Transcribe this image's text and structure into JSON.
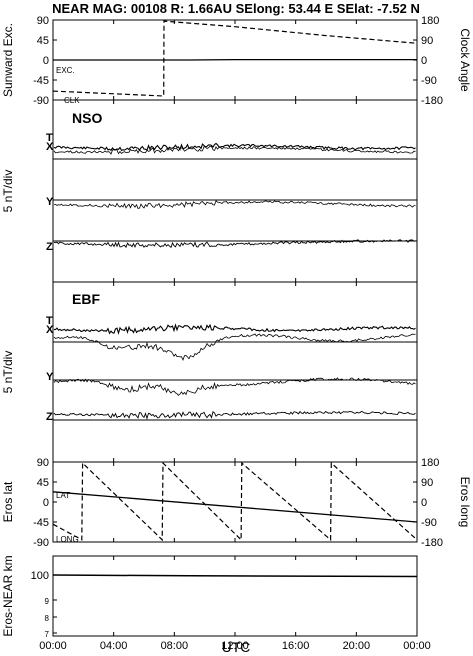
{
  "header": {
    "title": "NEAR MAG: 00108  R: 1.66AU  SElong:   53.44 E  SElat:   -7.52 N"
  },
  "chart_data": [
    {
      "type": "line",
      "id": "clock",
      "ylabel_left": "Sunward Exc.",
      "ylabel_right": "Clock Angle",
      "yticks_left": [
        "90",
        "45",
        "0",
        "-45",
        "-90"
      ],
      "yticks_right": [
        "180",
        "90",
        "0",
        "-90",
        "-180"
      ],
      "ylim_left": [
        -90,
        90
      ],
      "ylim_right": [
        -180,
        180
      ],
      "xlim": [
        0,
        24
      ],
      "labels": [
        "EXC.",
        "CLK"
      ],
      "series": [
        {
          "name": "EXC.",
          "axis": "left",
          "style": "solid",
          "x": [
            0,
            7.3,
            9,
            12,
            16,
            20,
            24
          ],
          "y": [
            0,
            0,
            0,
            1,
            1,
            1,
            1
          ]
        },
        {
          "name": "CLK",
          "axis": "right",
          "style": "dashed",
          "x": [
            0,
            7.3,
            7.32,
            12,
            18,
            24
          ],
          "y": [
            -140,
            -162,
            175,
            150,
            110,
            75
          ]
        }
      ]
    },
    {
      "type": "line",
      "id": "nso",
      "panel_label": "NSO",
      "ylabel": "5 nT/div",
      "components": [
        "T",
        "X",
        "Y",
        "Z"
      ],
      "xlim": [
        0,
        24
      ]
    },
    {
      "type": "line",
      "id": "ebf",
      "panel_label": "EBF",
      "ylabel": "5 nT/div",
      "components": [
        "T",
        "X",
        "Y",
        "Z"
      ],
      "xlim": [
        0,
        24
      ]
    },
    {
      "type": "line",
      "id": "eros",
      "ylabel_left": "Eros lat",
      "ylabel_right": "Eros long",
      "yticks_left": [
        "90",
        "45",
        "0",
        "-45",
        "-90"
      ],
      "yticks_right": [
        "180",
        "90",
        "0",
        "-90",
        "-180"
      ],
      "ylim_left": [
        -90,
        90
      ],
      "ylim_right": [
        -180,
        180
      ],
      "xlim": [
        0,
        24
      ],
      "labels": [
        "LAT",
        "LONG"
      ],
      "series": [
        {
          "name": "LAT",
          "axis": "left",
          "style": "solid",
          "x": [
            0,
            24
          ],
          "y": [
            23,
            -45
          ]
        },
        {
          "name": "LONG",
          "axis": "right",
          "style": "dashed",
          "x": [
            0,
            1.9,
            1.95,
            7.2,
            7.25,
            12.4,
            12.45,
            18.3,
            18.35,
            24
          ],
          "y": [
            -100,
            -170,
            175,
            -170,
            175,
            -170,
            175,
            -170,
            175,
            -170
          ]
        }
      ]
    },
    {
      "type": "line",
      "id": "range",
      "ylabel": "Eros-NEAR km",
      "yticks": [
        "100",
        "9",
        "8",
        "7"
      ],
      "xlim": [
        0,
        24
      ],
      "series": [
        {
          "name": "",
          "style": "solid",
          "x": [
            0,
            9,
            24
          ],
          "y": [
            100,
            99.5,
            99
          ]
        }
      ]
    }
  ],
  "x_axis": {
    "ticks": [
      "00:00",
      "04:00",
      "08:00",
      "12:00",
      "16:00",
      "20:00",
      "00:00"
    ],
    "label": "UTC"
  }
}
